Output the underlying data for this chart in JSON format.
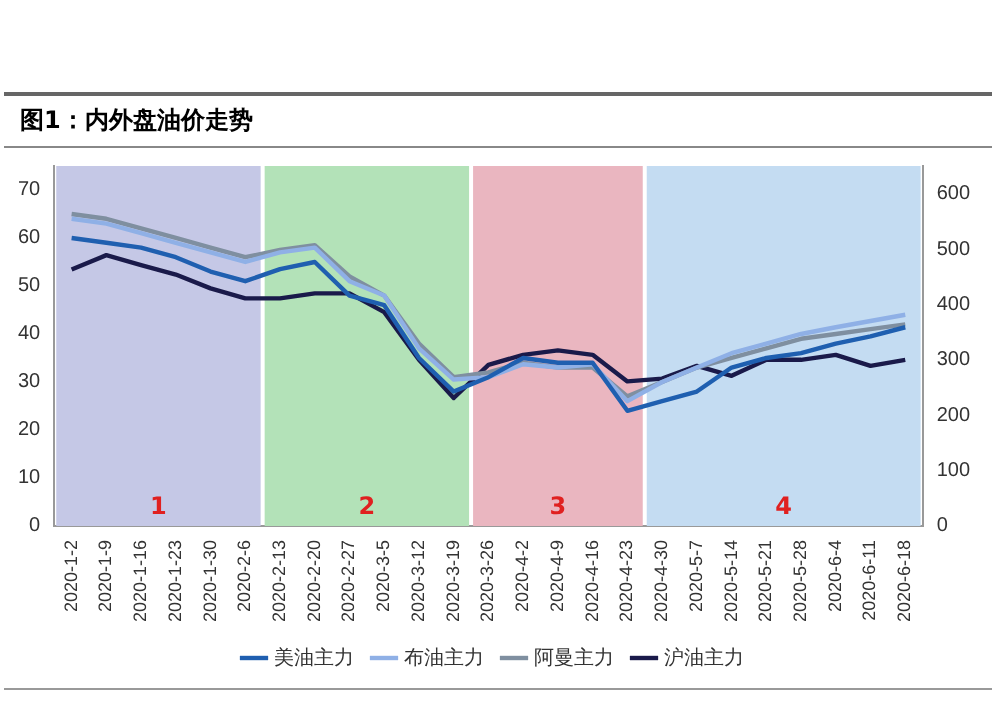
{
  "chart_data": {
    "type": "line",
    "title": "图1：内外盘油价走势",
    "categories": [
      "2020-1-2",
      "2020-1-9",
      "2020-1-16",
      "2020-1-23",
      "2020-1-30",
      "2020-2-6",
      "2020-2-13",
      "2020-2-20",
      "2020-2-27",
      "2020-3-5",
      "2020-3-12",
      "2020-3-19",
      "2020-3-26",
      "2020-4-2",
      "2020-4-9",
      "2020-4-16",
      "2020-4-23",
      "2020-4-30",
      "2020-5-7",
      "2020-5-14",
      "2020-5-21",
      "2020-5-28",
      "2020-6-4",
      "2020-6-11",
      "2020-6-18"
    ],
    "series": [
      {
        "name": "美油主力",
        "color": "#1f5fb0",
        "values": [
          60,
          59,
          58,
          56,
          53,
          51,
          53.5,
          55,
          48,
          46,
          35,
          28,
          31,
          35,
          34,
          34,
          24,
          26,
          28,
          33,
          35,
          36,
          38,
          39.5,
          41.4
        ]
      },
      {
        "name": "布油主力",
        "color": "#8fb0e6",
        "values": [
          64,
          63,
          61,
          59,
          57,
          55,
          57,
          58,
          51,
          48,
          37,
          30.5,
          31,
          33.7,
          33,
          33.7,
          26,
          30,
          33,
          36,
          38,
          40,
          41.4,
          42.7,
          44
        ]
      },
      {
        "name": "阿曼主力",
        "color": "#7f8fa0",
        "values": [
          65,
          64,
          62,
          60,
          58,
          56,
          57.5,
          58.5,
          52,
          48,
          38,
          31,
          32,
          34,
          33,
          33,
          27,
          30,
          33,
          35,
          37,
          39,
          40,
          41,
          42
        ]
      },
      {
        "name": "沪油主力",
        "color": "#1a1a4a",
        "axis": "y2",
        "values": [
          463,
          489,
          471,
          454,
          429,
          411,
          411,
          420,
          420,
          386,
          300,
          231,
          291,
          309,
          317,
          309,
          261,
          266,
          289,
          271,
          300,
          300,
          309,
          289,
          300
        ]
      }
    ],
    "ylim": [
      0,
      75
    ],
    "yticks": [
      0,
      10,
      20,
      30,
      40,
      50,
      60,
      70
    ],
    "y2lim": [
      0,
      650
    ],
    "y2ticks": [
      0,
      100,
      200,
      300,
      400,
      500,
      600
    ],
    "bands": [
      {
        "axis": "x",
        "from": "2020-1-2",
        "to": "2020-2-6",
        "label": "1",
        "color": "#c5c8e6"
      },
      {
        "axis": "x",
        "from": "2020-2-13",
        "to": "2020-3-19",
        "label": "2",
        "color": "#b3e2b8"
      },
      {
        "axis": "x",
        "from": "2020-3-26",
        "to": "2020-4-23",
        "label": "3",
        "color": "#eab6c0"
      },
      {
        "axis": "x",
        "from": "2020-4-30",
        "to": "2020-6-18",
        "label": "4",
        "color": "#c4dcf2"
      }
    ],
    "legend": "bottom"
  }
}
